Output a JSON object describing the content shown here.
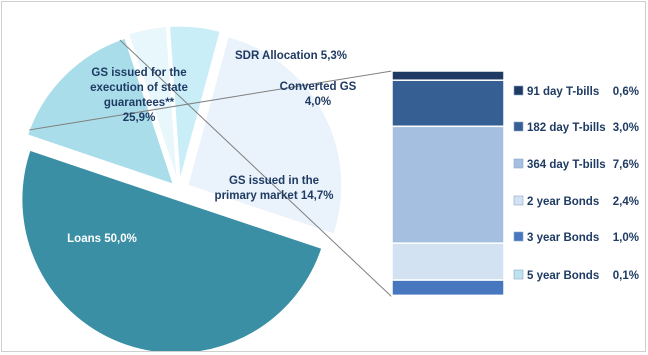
{
  "chart_data": {
    "type": "pie",
    "pie": {
      "slices": [
        {
          "label": "Loans 50,0%",
          "value": 50.0,
          "color": "#3a8fa5"
        },
        {
          "label": "GS issued in the primary market 14,7%",
          "value": 14.7,
          "color": "#a9dde9"
        },
        {
          "label": "Converted GS 4,0%",
          "value": 4.0,
          "color": "#e8f7fc"
        },
        {
          "label": "SDR Allocation 5,3%",
          "value": 5.3,
          "color": "#c9eef7"
        },
        {
          "label": "GS issued for the execution of state guarantees** 25,9%",
          "value": 25.9,
          "color": "#eaf2fb"
        }
      ]
    },
    "stacked_bar": {
      "segments": [
        {
          "label": "91 day T-bills",
          "value_label": "0,6%",
          "value": 0.6,
          "color": "#1f3b63"
        },
        {
          "label": "182 day T-bills",
          "value_label": "3,0%",
          "value": 3.0,
          "color": "#365f93"
        },
        {
          "label": "364 day T-bills",
          "value_label": "7,6%",
          "value": 7.6,
          "color": "#a4bfe0"
        },
        {
          "label": "2 year Bonds",
          "value_label": "2,4%",
          "value": 2.4,
          "color": "#d3e2f3"
        },
        {
          "label": "3 year Bonds",
          "value_label": "1,0%",
          "value": 1.0,
          "color": "#4677bf"
        },
        {
          "label": "5 year Bonds",
          "value_label": "0,1%",
          "value": 0.1,
          "color": "#bfe3ee"
        }
      ]
    }
  }
}
